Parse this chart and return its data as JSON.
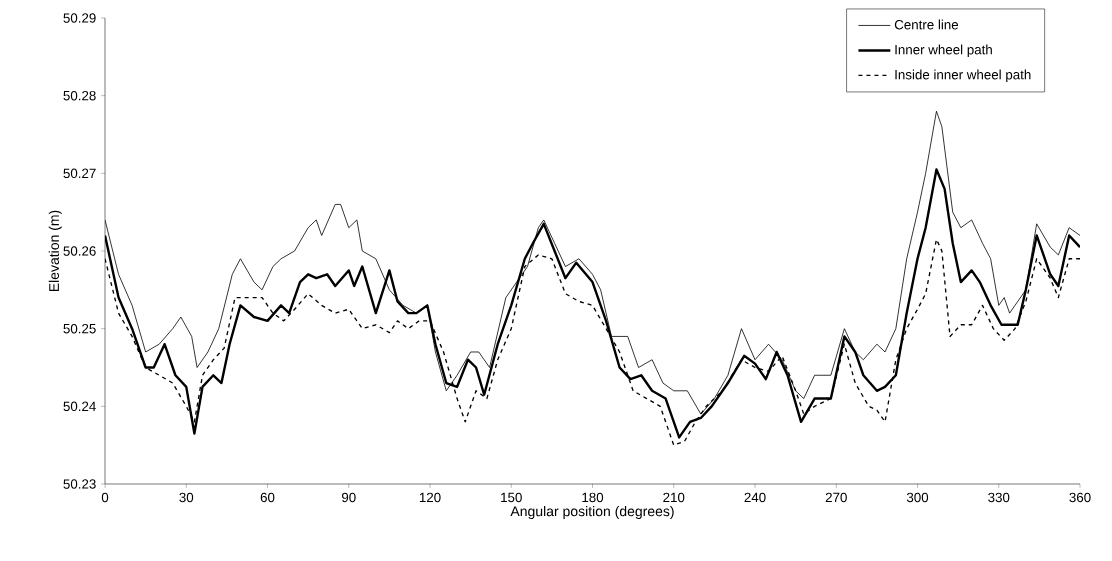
{
  "chart_data": {
    "type": "line",
    "xlabel": "Angular position (degrees)",
    "ylabel": "Elevation (m)",
    "xlim": [
      0,
      360
    ],
    "ylim": [
      50.23,
      50.29
    ],
    "xticks": [
      0,
      30,
      60,
      90,
      120,
      150,
      180,
      210,
      240,
      270,
      300,
      330,
      360
    ],
    "yticks": [
      50.23,
      50.24,
      50.25,
      50.26,
      50.27,
      50.28,
      50.29
    ],
    "grid": false,
    "legend": "top right",
    "marker": "none",
    "series": [
      {
        "name": "Centre line",
        "color": "#000000",
        "line_style": "solid",
        "x": [
          0,
          5,
          10,
          15,
          20,
          25,
          28,
          32,
          34,
          38,
          42,
          47,
          50,
          55,
          58,
          62,
          65,
          70,
          75,
          78,
          80,
          85,
          87,
          90,
          93,
          95,
          100,
          105,
          110,
          115,
          119,
          122,
          126,
          130,
          135,
          138,
          142,
          148,
          152,
          156,
          160,
          162,
          166,
          170,
          175,
          180,
          183,
          187,
          193,
          197,
          202,
          206,
          210,
          215,
          220,
          225,
          230,
          235,
          240,
          245,
          250,
          255,
          258,
          262,
          265,
          268,
          273,
          277,
          280,
          285,
          288,
          292,
          296,
          300,
          303,
          307,
          309,
          313,
          316,
          320,
          324,
          327,
          330,
          332,
          334,
          336,
          340,
          344,
          349,
          352,
          356,
          360
        ],
        "values": [
          50.264,
          50.257,
          50.253,
          50.247,
          50.248,
          50.25,
          50.2515,
          50.249,
          50.245,
          50.247,
          50.25,
          50.257,
          50.259,
          50.256,
          50.255,
          50.258,
          50.259,
          50.26,
          50.263,
          50.264,
          50.262,
          50.266,
          50.266,
          50.263,
          50.264,
          50.26,
          50.259,
          50.255,
          50.253,
          50.252,
          50.253,
          50.247,
          50.242,
          50.244,
          50.247,
          50.247,
          50.245,
          50.254,
          50.256,
          50.258,
          50.263,
          50.264,
          50.261,
          50.258,
          50.259,
          50.257,
          50.255,
          50.249,
          50.249,
          50.245,
          50.246,
          50.243,
          50.242,
          50.242,
          50.239,
          50.241,
          50.244,
          50.25,
          50.246,
          50.248,
          50.246,
          50.242,
          50.241,
          50.244,
          50.244,
          50.244,
          50.25,
          50.247,
          50.246,
          50.248,
          50.247,
          50.25,
          50.259,
          50.265,
          50.27,
          50.278,
          50.276,
          50.265,
          50.263,
          50.264,
          50.261,
          50.259,
          50.253,
          50.254,
          50.252,
          50.253,
          50.255,
          50.2635,
          50.2605,
          50.2595,
          50.263,
          50.262
        ]
      },
      {
        "name": "Inner wheel path",
        "color": "#000000",
        "line_style": "solid",
        "x": [
          0,
          5,
          10,
          15,
          18,
          22,
          26,
          30,
          33,
          36,
          40,
          43,
          46,
          50,
          55,
          60,
          65,
          68,
          72,
          75,
          78,
          82,
          85,
          90,
          92,
          95,
          100,
          105,
          108,
          112,
          115,
          119,
          122,
          126,
          130,
          134,
          137,
          140,
          145,
          150,
          155,
          158,
          162,
          166,
          170,
          174,
          180,
          185,
          190,
          194,
          198,
          202,
          207,
          212,
          216,
          220,
          224,
          230,
          236,
          240,
          244,
          248,
          252,
          257,
          262,
          268,
          273,
          277,
          280,
          285,
          288,
          292,
          296,
          300,
          303,
          307,
          310,
          313,
          316,
          320,
          323,
          327,
          331,
          334,
          337,
          340,
          344,
          349,
          352,
          356,
          360
        ],
        "values": [
          50.262,
          50.254,
          50.25,
          50.245,
          50.245,
          50.248,
          50.244,
          50.2425,
          50.2365,
          50.2425,
          50.244,
          50.243,
          50.248,
          50.253,
          50.2515,
          50.251,
          50.253,
          50.252,
          50.256,
          50.257,
          50.2565,
          50.257,
          50.2555,
          50.2575,
          50.2555,
          50.258,
          50.252,
          50.2575,
          50.2535,
          50.252,
          50.252,
          50.253,
          50.248,
          50.243,
          50.2425,
          50.246,
          50.245,
          50.2415,
          50.248,
          50.253,
          50.259,
          50.261,
          50.2635,
          50.26,
          50.2565,
          50.2585,
          50.256,
          50.251,
          50.245,
          50.2435,
          50.244,
          50.242,
          50.241,
          50.236,
          50.238,
          50.2385,
          50.24,
          50.243,
          50.2465,
          50.2455,
          50.2435,
          50.247,
          50.244,
          50.238,
          50.241,
          50.241,
          50.249,
          50.247,
          50.244,
          50.242,
          50.2425,
          50.244,
          50.252,
          50.259,
          50.263,
          50.2705,
          50.268,
          50.261,
          50.256,
          50.2575,
          50.256,
          50.253,
          50.2505,
          50.2505,
          50.2505,
          50.255,
          50.262,
          50.257,
          50.2555,
          50.262,
          50.2605
        ]
      },
      {
        "name": "Inside inner wheel path",
        "color": "#000000",
        "line_style": "dashed",
        "x": [
          0,
          5,
          10,
          15,
          20,
          25,
          30,
          33,
          36,
          40,
          44,
          48,
          52,
          58,
          62,
          66,
          70,
          75,
          80,
          85,
          90,
          95,
          100,
          105,
          108,
          112,
          116,
          120,
          125,
          130,
          133,
          137,
          141,
          145,
          150,
          155,
          160,
          165,
          170,
          175,
          180,
          185,
          190,
          195,
          200,
          205,
          210,
          214,
          218,
          222,
          228,
          235,
          240,
          245,
          250,
          255,
          258,
          262,
          268,
          273,
          277,
          282,
          285,
          288,
          292,
          296,
          300,
          303,
          307,
          309,
          312,
          316,
          320,
          324,
          328,
          332,
          336,
          340,
          344,
          349,
          352,
          356,
          360
        ],
        "values": [
          50.259,
          50.252,
          50.249,
          50.245,
          50.244,
          50.243,
          50.24,
          50.238,
          50.244,
          50.246,
          50.2475,
          50.254,
          50.254,
          50.254,
          50.252,
          50.251,
          50.2525,
          50.2545,
          50.253,
          50.252,
          50.2525,
          50.25,
          50.2505,
          50.2495,
          50.251,
          50.25,
          50.251,
          50.251,
          50.247,
          50.241,
          50.238,
          50.242,
          50.241,
          50.246,
          50.25,
          50.258,
          50.2595,
          50.259,
          50.2545,
          50.2535,
          50.253,
          50.25,
          50.247,
          50.242,
          50.241,
          50.24,
          50.235,
          50.2355,
          50.238,
          50.24,
          50.242,
          50.246,
          50.245,
          50.2445,
          50.2465,
          50.242,
          50.239,
          50.24,
          50.241,
          50.248,
          50.243,
          50.24,
          50.2395,
          50.238,
          50.246,
          50.25,
          50.2525,
          50.2545,
          50.2615,
          50.26,
          50.249,
          50.2505,
          50.2505,
          50.253,
          50.25,
          50.2485,
          50.25,
          50.2535,
          50.259,
          50.2565,
          50.254,
          50.259,
          50.259
        ]
      }
    ]
  }
}
